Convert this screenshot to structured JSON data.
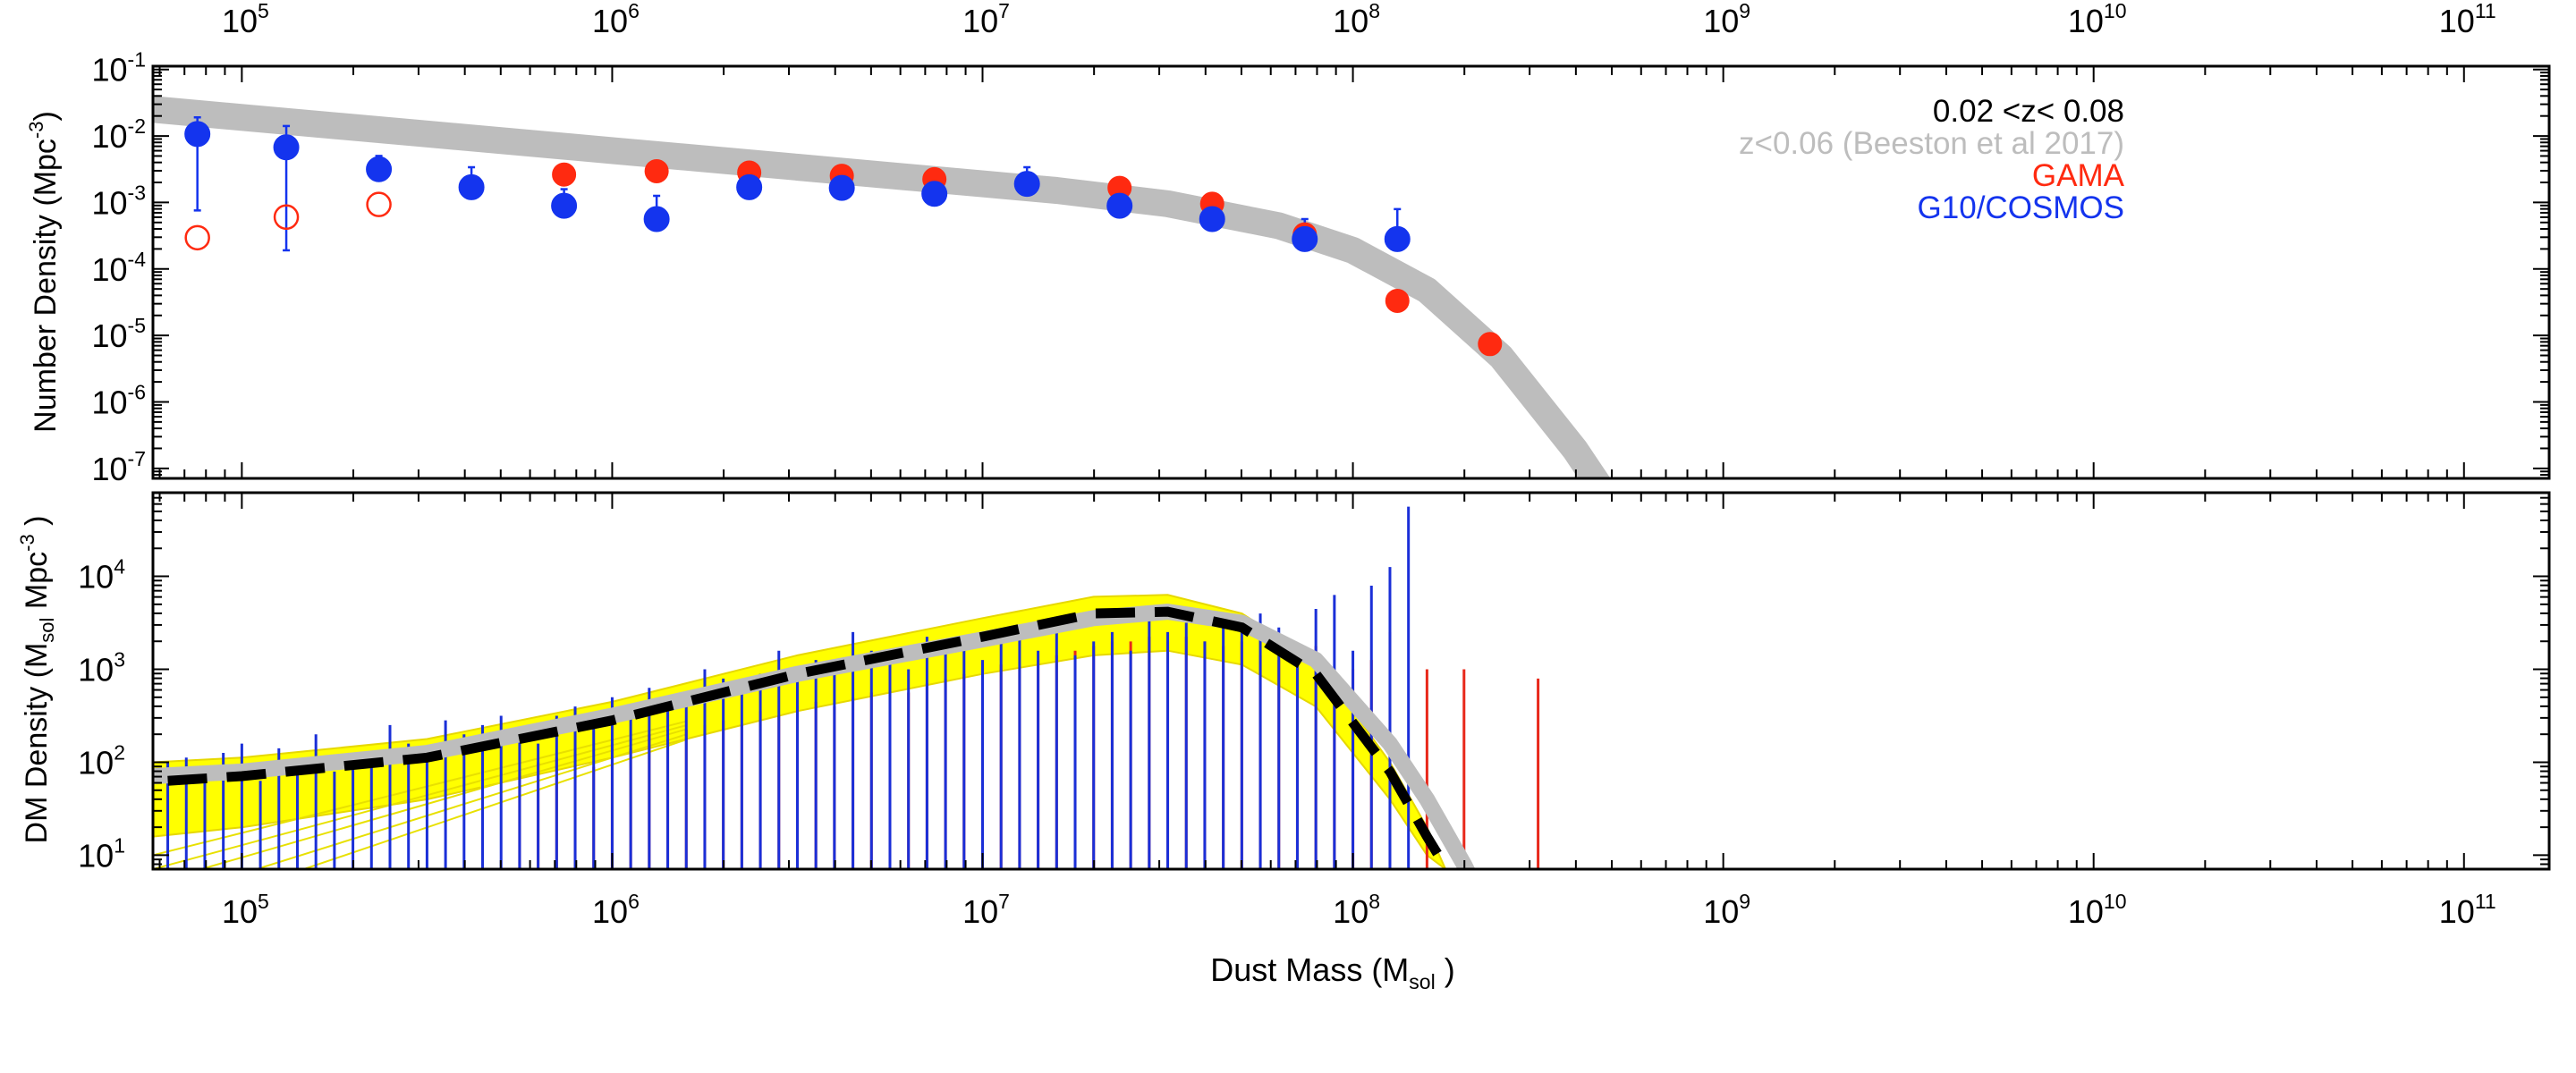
{
  "chart_data": [
    {
      "type": "scatter",
      "panel": "top",
      "ylabel_main": "Number Density (Mpc",
      "ylabel_sup": "-3",
      "ylabel_end": ")",
      "x_scale": "log",
      "y_scale": "log",
      "xlim_log10": [
        4.76,
        11.23
      ],
      "ylim_log10": [
        -7.15,
        -0.95
      ],
      "x_tick_exponents": [
        "5",
        "6",
        "7",
        "8",
        "9",
        "10",
        "11"
      ],
      "y_tick_exponents": [
        "-1",
        "-2",
        "-3",
        "-4",
        "-5",
        "-6",
        "-7"
      ],
      "tick_base": "10",
      "legend": {
        "title": "0.02 <z< 0.08",
        "entries": [
          {
            "label": "z<0.06 (Beeston et al 2017)",
            "color": "#bdbdbd"
          },
          {
            "label": "GAMA",
            "color": "#ff2a10"
          },
          {
            "label": "G10/COSMOS",
            "color": "#1434ee"
          }
        ]
      },
      "reference_curve": {
        "name": "z<0.06 (Beeston et al 2017)",
        "color": "#bdbdbd",
        "log_x": [
          4.76,
          5.0,
          5.5,
          6.0,
          6.5,
          7.0,
          7.2,
          7.5,
          7.8,
          8.0,
          8.2,
          8.4,
          8.6,
          8.7
        ],
        "log_y": [
          -1.6,
          -1.72,
          -1.97,
          -2.22,
          -2.47,
          -2.72,
          -2.82,
          -3.02,
          -3.35,
          -3.72,
          -4.32,
          -5.32,
          -6.72,
          -7.55
        ]
      },
      "series": [
        {
          "name": "GAMA",
          "color": "#ff2a10",
          "log_x": [
            4.88,
            5.12,
            5.37,
            5.62,
            5.87,
            6.12,
            6.37,
            6.62,
            6.87,
            7.12,
            7.37,
            7.62,
            7.87,
            8.12,
            8.37
          ],
          "log_y": [
            -3.53,
            -3.22,
            -3.03,
            -2.77,
            -2.58,
            -2.53,
            -2.55,
            -2.6,
            -2.65,
            -2.72,
            -2.78,
            -3.02,
            -3.48,
            -4.48,
            -5.13
          ],
          "err_up": [
            0,
            0,
            0,
            0,
            0,
            0,
            0.08,
            0.06,
            0.06,
            0.08,
            0.08,
            0.1,
            0.1,
            0.12,
            0.15
          ],
          "open_markers": [
            true,
            true,
            true,
            false,
            false,
            false,
            false,
            false,
            false,
            false,
            false,
            false,
            false,
            false,
            false
          ]
        },
        {
          "name": "G10/COSMOS",
          "color": "#1434ee",
          "log_x": [
            4.88,
            5.12,
            5.37,
            5.62,
            5.87,
            6.12,
            6.37,
            6.62,
            6.87,
            7.12,
            7.37,
            7.62,
            7.87,
            8.12
          ],
          "log_y": [
            -1.97,
            -2.17,
            -2.5,
            -2.77,
            -3.05,
            -3.25,
            -2.77,
            -2.78,
            -2.87,
            -2.72,
            -3.05,
            -3.25,
            -3.55,
            -3.55
          ],
          "err_up": [
            0.25,
            0.32,
            0.2,
            0.3,
            0.25,
            0.35,
            0.15,
            0.12,
            0.12,
            0.25,
            0.15,
            0.2,
            0.3,
            0.45
          ],
          "err_down": [
            1.15,
            1.55,
            0,
            0,
            0,
            0,
            0,
            0,
            0,
            0,
            0,
            0,
            0,
            0
          ]
        }
      ]
    },
    {
      "type": "line",
      "panel": "bottom",
      "ylabel_parts": [
        "DM Density (M",
        "sol",
        " Mpc",
        "-3",
        " )"
      ],
      "xlabel_parts": [
        "Dust Mass (M",
        "sol",
        " )"
      ],
      "x_scale": "log",
      "y_scale": "log",
      "xlim_log10": [
        4.76,
        11.23
      ],
      "ylim_log10": [
        0.85,
        4.9
      ],
      "x_tick_exponents": [
        "5",
        "6",
        "7",
        "8",
        "9",
        "10",
        "11"
      ],
      "y_tick_exponents": [
        "4",
        "3",
        "2",
        "1"
      ],
      "tick_base": "10",
      "fit_dashed": {
        "color": "#000000",
        "log_x": [
          4.8,
          5.0,
          5.5,
          6.0,
          6.5,
          7.0,
          7.3,
          7.5,
          7.7,
          7.9,
          8.1,
          8.2,
          8.3
        ],
        "log_y": [
          1.8,
          1.85,
          2.05,
          2.45,
          2.95,
          3.35,
          3.6,
          3.62,
          3.45,
          2.95,
          1.9,
          1.2,
          0.55
        ]
      },
      "reference_curve": {
        "color": "#bdbdbd",
        "log_x": [
          4.76,
          5.0,
          5.5,
          6.0,
          6.5,
          7.0,
          7.3,
          7.5,
          7.7,
          7.9,
          8.1,
          8.2,
          8.3,
          8.4
        ],
        "log_y": [
          1.85,
          1.9,
          2.1,
          2.5,
          2.95,
          3.32,
          3.55,
          3.62,
          3.5,
          3.1,
          2.2,
          1.6,
          0.9,
          0.1
        ]
      },
      "yellow_band": {
        "color": "#ffff00",
        "log_x": [
          4.76,
          5.0,
          5.5,
          6.0,
          6.5,
          7.0,
          7.3,
          7.5,
          7.7,
          7.9,
          8.1,
          8.2,
          8.25
        ],
        "log_y_upper": [
          2.0,
          2.05,
          2.25,
          2.65,
          3.15,
          3.55,
          3.78,
          3.8,
          3.6,
          3.1,
          2.0,
          1.3,
          0.85
        ],
        "log_y_lower": [
          1.2,
          1.3,
          1.6,
          2.05,
          2.55,
          2.95,
          3.15,
          3.2,
          3.05,
          2.6,
          1.6,
          1.0,
          0.85
        ]
      },
      "spikes": [
        {
          "name": "GAMA",
          "color": "#e8281a",
          "log_x": [
            5.75,
            5.8,
            5.85,
            5.9,
            5.95,
            6.0,
            6.05,
            6.1,
            6.15,
            6.2,
            6.25,
            6.3,
            6.35,
            6.4,
            6.45,
            6.5,
            6.55,
            6.6,
            6.65,
            6.7,
            6.75,
            6.8,
            6.85,
            6.9,
            6.95,
            7.0,
            7.05,
            7.1,
            7.15,
            7.2,
            7.25,
            7.3,
            7.35,
            7.4,
            7.45,
            7.5,
            7.55,
            7.6,
            7.65,
            7.7,
            7.75,
            7.8,
            7.85,
            7.9,
            7.95,
            8.0,
            8.05,
            8.1,
            8.2,
            8.3,
            8.5
          ],
          "log_y": [
            1.9,
            2.0,
            2.05,
            2.1,
            1.95,
            2.2,
            2.15,
            2.3,
            2.25,
            2.35,
            2.4,
            2.45,
            2.4,
            2.55,
            2.5,
            2.6,
            2.65,
            2.6,
            2.7,
            2.75,
            2.8,
            2.75,
            2.85,
            2.9,
            2.95,
            3.0,
            3.05,
            3.0,
            3.1,
            3.15,
            3.2,
            3.25,
            3.3,
            3.3,
            3.35,
            3.3,
            3.35,
            3.3,
            3.25,
            3.3,
            3.15,
            3.1,
            3.0,
            3.25,
            2.85,
            3.0,
            3.1,
            3.4,
            3.0,
            3.0,
            2.9
          ]
        },
        {
          "name": "G10/COSMOS",
          "color": "#1a2fd8",
          "log_x": [
            4.8,
            4.85,
            4.9,
            4.95,
            5.0,
            5.05,
            5.1,
            5.15,
            5.2,
            5.25,
            5.3,
            5.35,
            5.4,
            5.45,
            5.5,
            5.55,
            5.6,
            5.65,
            5.7,
            5.75,
            5.8,
            5.85,
            5.9,
            5.95,
            6.0,
            6.05,
            6.1,
            6.15,
            6.2,
            6.25,
            6.3,
            6.35,
            6.4,
            6.45,
            6.5,
            6.55,
            6.6,
            6.65,
            6.7,
            6.75,
            6.8,
            6.85,
            6.9,
            6.95,
            7.0,
            7.05,
            7.1,
            7.15,
            7.2,
            7.25,
            7.3,
            7.35,
            7.4,
            7.45,
            7.5,
            7.55,
            7.6,
            7.65,
            7.7,
            7.75,
            7.8,
            7.85,
            7.9,
            7.95,
            8.0,
            8.05,
            8.1,
            8.15
          ],
          "log_y": [
            2.0,
            2.05,
            1.9,
            2.1,
            2.2,
            1.8,
            2.15,
            2.0,
            2.3,
            1.9,
            2.0,
            2.1,
            2.4,
            2.2,
            2.1,
            2.45,
            2.3,
            2.4,
            2.5,
            2.35,
            2.2,
            2.5,
            2.6,
            2.45,
            2.7,
            2.5,
            2.8,
            2.6,
            2.75,
            3.0,
            2.9,
            2.85,
            2.95,
            3.2,
            2.9,
            3.1,
            2.95,
            3.4,
            3.2,
            3.1,
            3.0,
            3.35,
            3.2,
            3.25,
            3.1,
            3.3,
            3.4,
            3.2,
            3.5,
            3.15,
            3.3,
            3.4,
            3.2,
            3.6,
            3.4,
            3.5,
            3.3,
            3.55,
            3.4,
            3.6,
            3.45,
            3.2,
            3.65,
            3.8,
            3.2,
            3.9,
            4.1,
            4.75
          ]
        }
      ]
    }
  ]
}
